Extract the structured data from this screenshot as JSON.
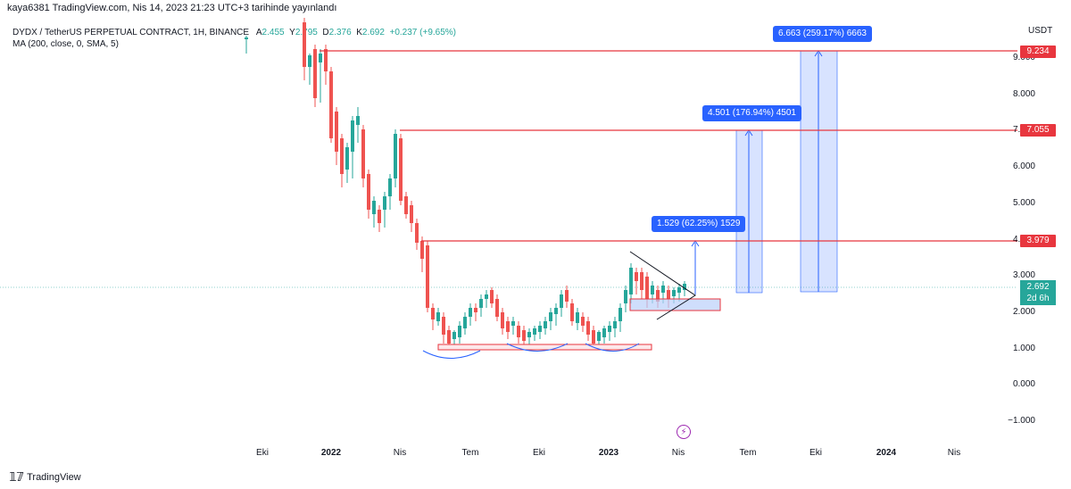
{
  "header": {
    "published": "kaya6381 TradingView.com, Nis 14, 2023 21:23 UTC+3 tarihinde yayınlandı",
    "symbol": "DYDX / TetherUS PERPETUAL CONTRACT, 1H, BINANCE",
    "o_label": "A",
    "o_value": "2.455",
    "h_label": "Y",
    "h_value": "2.795",
    "l_label": "D",
    "l_value": "2.376",
    "c_label": "K",
    "c_value": "2.692",
    "change": "+0.237 (+9.65%)",
    "indicator": "MA (200, close, 0, SMA, 5)"
  },
  "axis": {
    "currency": "USDT",
    "y_ticks": [
      "9.000",
      "8.000",
      "7.000",
      "6.000",
      "5.000",
      "4.000",
      "3.000",
      "2.000",
      "1.000",
      "0.000",
      "−1.000"
    ],
    "x_ticks": [
      {
        "label": "Eki",
        "bold": false
      },
      {
        "label": "2022",
        "bold": true
      },
      {
        "label": "Nis",
        "bold": false
      },
      {
        "label": "Tem",
        "bold": false
      },
      {
        "label": "Eki",
        "bold": false
      },
      {
        "label": "2023",
        "bold": true
      },
      {
        "label": "Nis",
        "bold": false
      },
      {
        "label": "Tem",
        "bold": false
      },
      {
        "label": "Eki",
        "bold": false
      },
      {
        "label": "2024",
        "bold": true
      },
      {
        "label": "Nis",
        "bold": false
      }
    ]
  },
  "levels": [
    {
      "label": "9.234",
      "value": 9.234
    },
    {
      "label": "7.055",
      "value": 7.055
    },
    {
      "label": "3.979",
      "value": 3.979
    }
  ],
  "current_price": {
    "value": "2.692",
    "countdown": "2d 6h"
  },
  "measurements": [
    {
      "label": "1.529 (62.25%) 1529"
    },
    {
      "label": "4.501 (176.94%) 4501"
    },
    {
      "label": "6.663 (259.17%) 6663"
    }
  ],
  "footer": {
    "brand": "TradingView"
  },
  "colors": {
    "up": "#26a69a",
    "down": "#ef5350",
    "level": "#e8363e",
    "measure": "#2962ff"
  }
}
